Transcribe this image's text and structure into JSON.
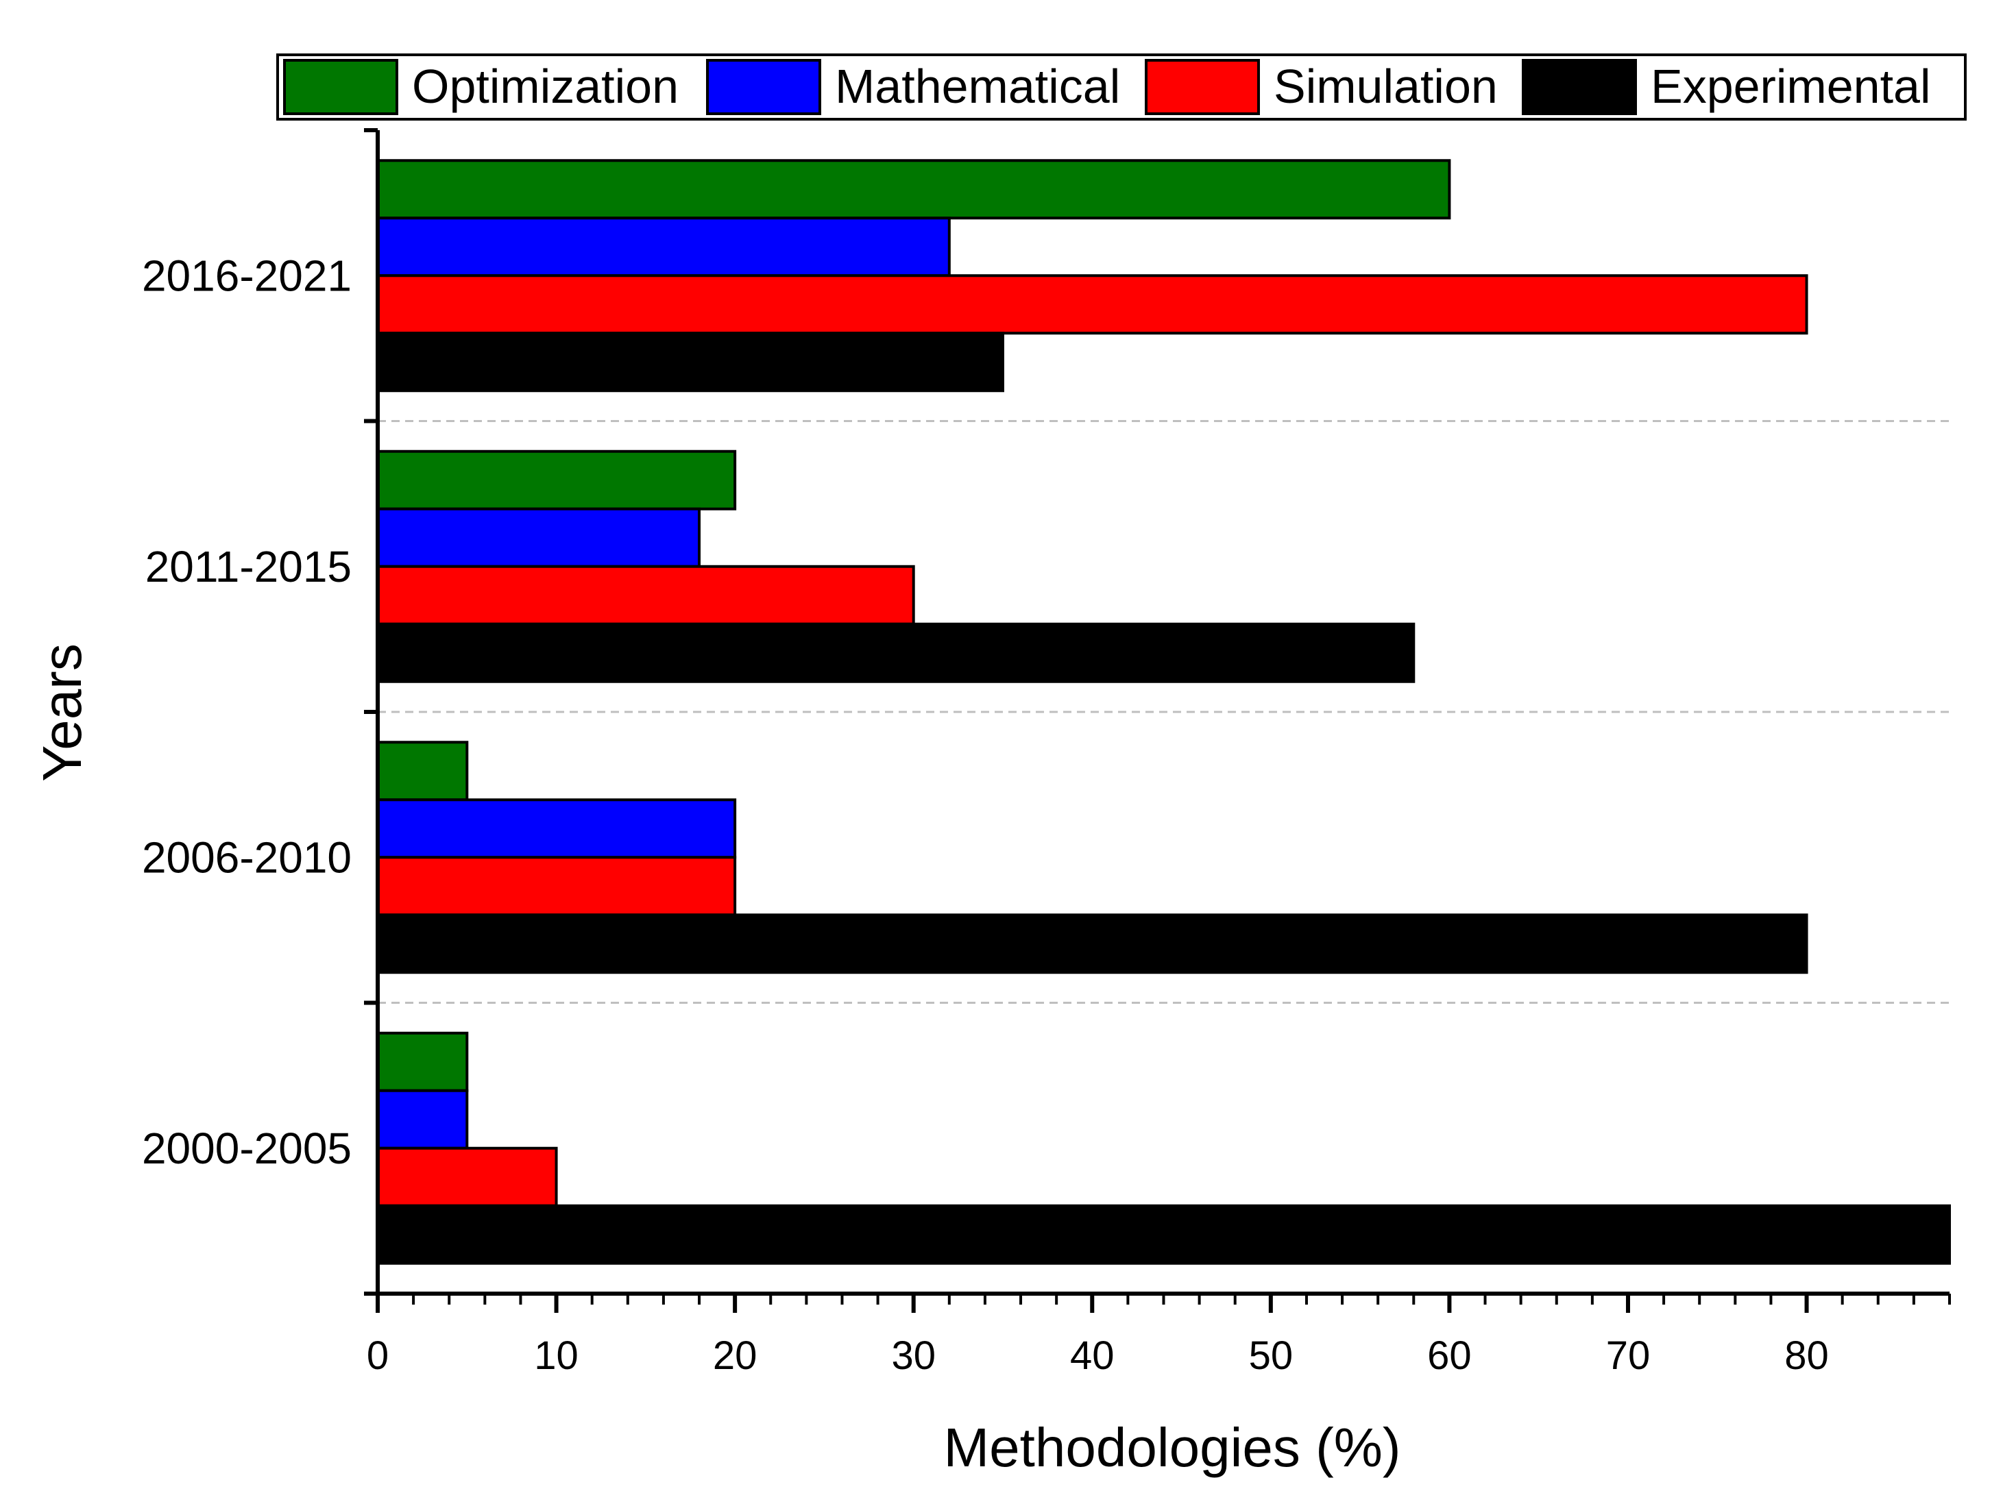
{
  "chart_data": {
    "type": "bar",
    "orientation": "horizontal",
    "title": "",
    "xlabel": "Methodologies (%)",
    "ylabel": "Years",
    "xlim": [
      0,
      88
    ],
    "xticks": [
      0,
      10,
      20,
      30,
      40,
      50,
      60,
      70,
      80
    ],
    "categories": [
      "2016-2021",
      "2011-2015",
      "2006-2010",
      "2000-2005"
    ],
    "series": [
      {
        "name": "Optimization",
        "color": "#007700",
        "values": [
          60,
          20,
          5,
          5
        ]
      },
      {
        "name": "Mathematical",
        "color": "#0000ff",
        "values": [
          32,
          18,
          20,
          5
        ]
      },
      {
        "name": "Simulation",
        "color": "#ff0000",
        "values": [
          80,
          30,
          20,
          10
        ]
      },
      {
        "name": "Experimental",
        "color": "#000000",
        "values": [
          35,
          58,
          80,
          88
        ]
      }
    ],
    "legend": {
      "placement": "top"
    },
    "grid": "horizontal dashed separators between categories"
  }
}
